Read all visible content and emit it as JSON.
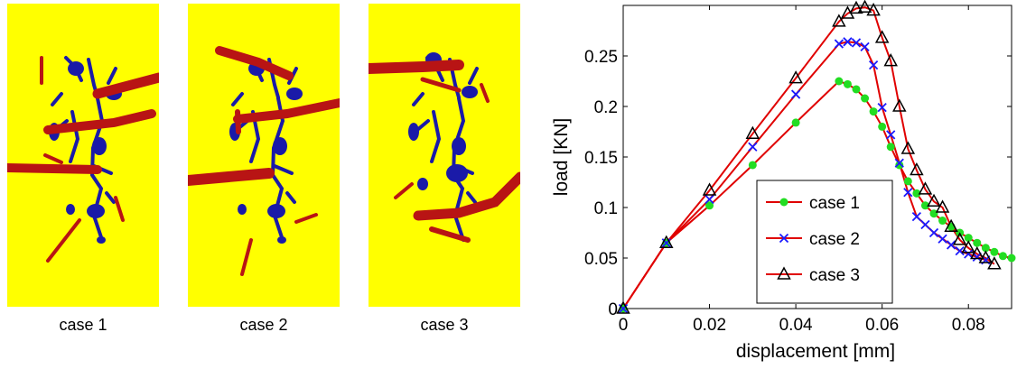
{
  "panels": {
    "captions": [
      "case 1",
      "case 2",
      "case 3"
    ],
    "background_color": "#ffff00",
    "inclusion_color": "#1a1aa8",
    "crack_color": "#b81414"
  },
  "chart_data": {
    "type": "line",
    "xlabel": "displacement [mm]",
    "ylabel": "load [KN]",
    "xlim": [
      0,
      0.09
    ],
    "ylim": [
      0,
      0.3
    ],
    "xticks": [
      "0",
      "0.02",
      "0.04",
      "0.06",
      "0.08"
    ],
    "yticks": [
      "0",
      "0.05",
      "0.1",
      "0.15",
      "0.2",
      "0.25"
    ],
    "legend_position": "bottom-center",
    "line_color": "#e00000",
    "series": [
      {
        "name": "case 1",
        "marker": "circle",
        "marker_color": "#22dd22",
        "x": [
          0,
          0.01,
          0.02,
          0.03,
          0.04,
          0.05,
          0.052,
          0.054,
          0.056,
          0.058,
          0.06,
          0.062,
          0.064,
          0.066,
          0.068,
          0.07,
          0.072,
          0.074,
          0.076,
          0.078,
          0.08,
          0.082,
          0.084,
          0.086,
          0.088,
          0.09
        ],
        "y": [
          0,
          0.065,
          0.102,
          0.142,
          0.184,
          0.225,
          0.222,
          0.217,
          0.208,
          0.195,
          0.18,
          0.16,
          0.142,
          0.126,
          0.114,
          0.102,
          0.094,
          0.087,
          0.081,
          0.075,
          0.07,
          0.065,
          0.06,
          0.056,
          0.052,
          0.05
        ]
      },
      {
        "name": "case 2",
        "marker": "x",
        "marker_color": "#1a1aff",
        "x": [
          0,
          0.01,
          0.02,
          0.03,
          0.04,
          0.05,
          0.052,
          0.054,
          0.056,
          0.058,
          0.06,
          0.062,
          0.064,
          0.066,
          0.068,
          0.07,
          0.072,
          0.074,
          0.076,
          0.078,
          0.08,
          0.082,
          0.084
        ],
        "y": [
          0,
          0.065,
          0.108,
          0.16,
          0.212,
          0.262,
          0.264,
          0.263,
          0.259,
          0.241,
          0.199,
          0.172,
          0.144,
          0.115,
          0.091,
          0.083,
          0.075,
          0.069,
          0.063,
          0.057,
          0.054,
          0.051,
          0.048
        ]
      },
      {
        "name": "case 3",
        "marker": "triangle",
        "marker_color": "#000000",
        "x": [
          0,
          0.01,
          0.02,
          0.03,
          0.04,
          0.05,
          0.052,
          0.054,
          0.056,
          0.058,
          0.06,
          0.062,
          0.064,
          0.066,
          0.068,
          0.07,
          0.072,
          0.074,
          0.076,
          0.078,
          0.08,
          0.082,
          0.084,
          0.086
        ],
        "y": [
          0,
          0.065,
          0.117,
          0.173,
          0.228,
          0.284,
          0.292,
          0.297,
          0.298,
          0.295,
          0.268,
          0.245,
          0.2,
          0.158,
          0.137,
          0.118,
          0.106,
          0.1,
          0.081,
          0.068,
          0.06,
          0.054,
          0.05,
          0.044
        ]
      }
    ]
  }
}
